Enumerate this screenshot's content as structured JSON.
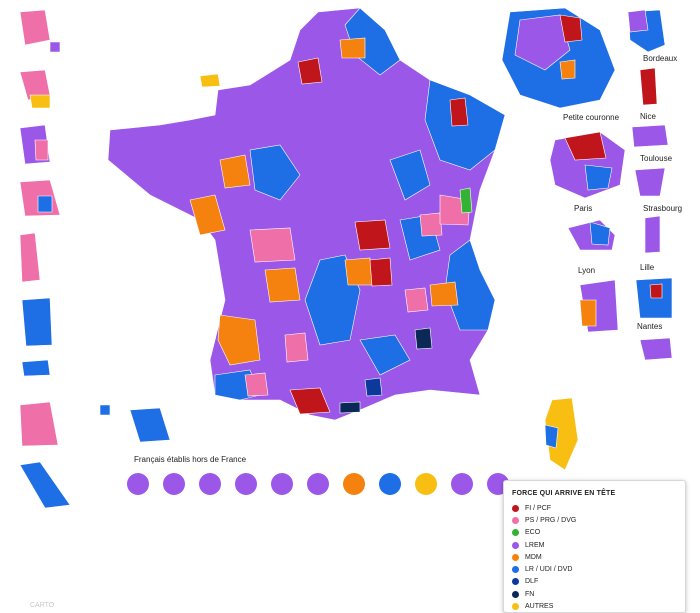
{
  "colors": {
    "fi_pcf": "#c0161b",
    "ps_prg_dvg": "#ef6fa8",
    "eco": "#33b233",
    "lrem": "#9b57e8",
    "mdm": "#f5820f",
    "lr_udi_dvd": "#1e6ee6",
    "dlf": "#0c3a9c",
    "fn": "#0b2857",
    "autres": "#f9be12",
    "border": "#ffffff"
  },
  "insets": {
    "petite_couronne": "Petite couronne",
    "paris": "Paris",
    "lyon": "Lyon",
    "bordeaux": "Bordeaux",
    "nice": "Nice",
    "toulouse": "Toulouse",
    "strasbourg": "Strasbourg",
    "lille": "Lille",
    "nantes": "Nantes"
  },
  "abroad": {
    "title": "Français établis hors de France",
    "constituencies": [
      "lrem",
      "lrem",
      "lrem",
      "lrem",
      "lrem",
      "lrem",
      "mdm",
      "lr_udi_dvd",
      "autres",
      "lrem",
      "lrem"
    ]
  },
  "legend": {
    "title": "FORCE QUI ARRIVE EN TÊTE",
    "items": [
      {
        "label": "FI / PCF",
        "color": "#c0161b"
      },
      {
        "label": "PS / PRG / DVG",
        "color": "#ef6fa8"
      },
      {
        "label": "ECO",
        "color": "#33b233"
      },
      {
        "label": "LREM",
        "color": "#9b57e8"
      },
      {
        "label": "MDM",
        "color": "#f5820f"
      },
      {
        "label": "LR / UDI / DVD",
        "color": "#1e6ee6"
      },
      {
        "label": "DLF",
        "color": "#0c3a9c"
      },
      {
        "label": "FN",
        "color": "#0b2857"
      },
      {
        "label": "AUTRES",
        "color": "#f9be12"
      }
    ]
  },
  "credit": "CARTO"
}
